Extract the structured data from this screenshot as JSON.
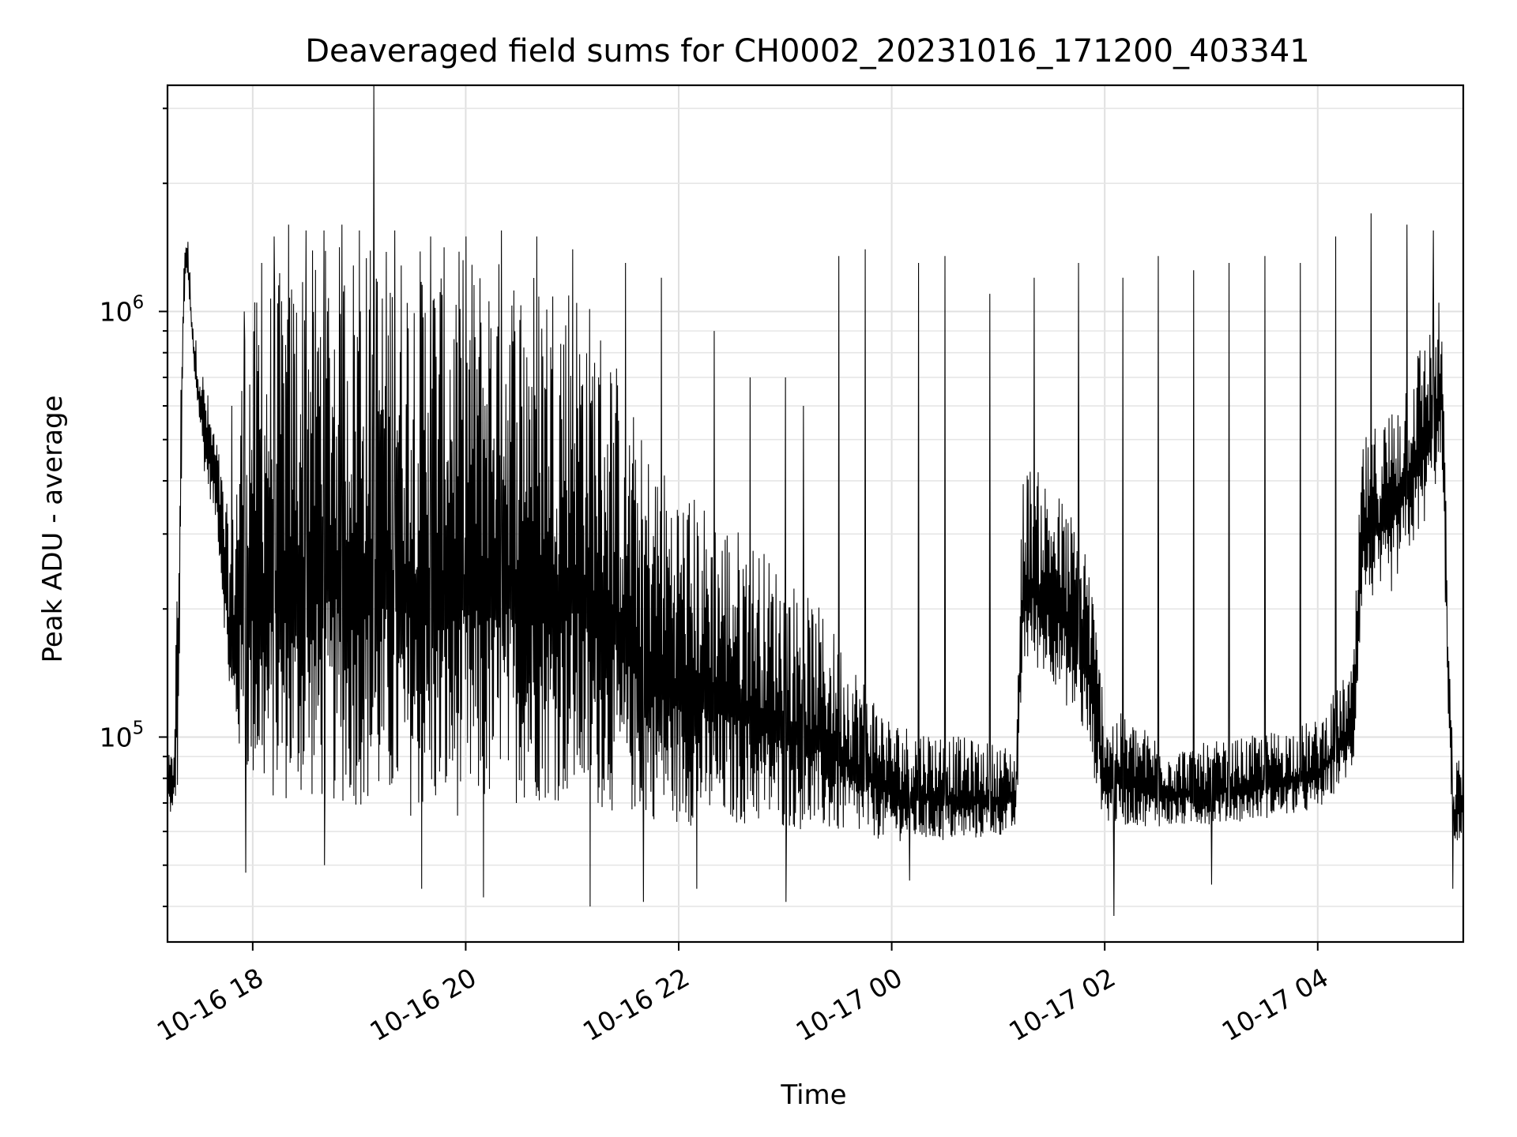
{
  "chart_data": {
    "type": "line",
    "title": "Deaveraged field sums for CH0002_20231016_171200_403341",
    "xlabel": "Time",
    "ylabel": "Peak ADU - average",
    "y_scale": "log",
    "ylim": [
      33000,
      3400000
    ],
    "xlim": [
      "2023-10-16 17:12",
      "2023-10-17 05:22"
    ],
    "grid": true,
    "x_ticks": [
      {
        "value": "2023-10-16 18:00",
        "label": "10-16 18"
      },
      {
        "value": "2023-10-16 20:00",
        "label": "10-16 20"
      },
      {
        "value": "2023-10-16 22:00",
        "label": "10-16 22"
      },
      {
        "value": "2023-10-17 00:00",
        "label": "10-17 00"
      },
      {
        "value": "2023-10-17 02:00",
        "label": "10-17 02"
      },
      {
        "value": "2023-10-17 04:00",
        "label": "10-17 04"
      }
    ],
    "y_ticks": [
      {
        "value": 100000,
        "base": "10",
        "exp": "5"
      },
      {
        "value": 1000000,
        "base": "10",
        "exp": "6"
      }
    ],
    "series": [
      {
        "color": "#000000",
        "envelope": [
          {
            "t": "2023-10-16 17:12",
            "lo": 70000,
            "hi": 90000
          },
          {
            "t": "2023-10-16 17:15",
            "lo": 60000,
            "hi": 93000
          },
          {
            "t": "2023-10-16 17:18",
            "lo": 70000,
            "hi": 300000
          },
          {
            "t": "2023-10-16 17:21",
            "lo": 900000,
            "hi": 1500000
          },
          {
            "t": "2023-10-16 17:23",
            "lo": 1200000,
            "hi": 1600000
          },
          {
            "t": "2023-10-16 17:27",
            "lo": 700000,
            "hi": 900000
          },
          {
            "t": "2023-10-16 17:33",
            "lo": 400000,
            "hi": 700000
          },
          {
            "t": "2023-10-16 17:40",
            "lo": 300000,
            "hi": 500000
          },
          {
            "t": "2023-10-16 17:48",
            "lo": 100000,
            "hi": 300000
          },
          {
            "t": "2023-10-16 17:55",
            "lo": 70000,
            "hi": 1000000
          },
          {
            "t": "2023-10-16 18:10",
            "lo": 60000,
            "hi": 1200000
          },
          {
            "t": "2023-10-16 18:30",
            "lo": 60000,
            "hi": 1400000
          },
          {
            "t": "2023-10-16 19:00",
            "lo": 58000,
            "hi": 1500000
          },
          {
            "t": "2023-10-16 19:30",
            "lo": 55000,
            "hi": 1450000
          },
          {
            "t": "2023-10-16 20:00",
            "lo": 55000,
            "hi": 1400000
          },
          {
            "t": "2023-10-16 20:30",
            "lo": 60000,
            "hi": 1350000
          },
          {
            "t": "2023-10-16 21:00",
            "lo": 60000,
            "hi": 1300000
          },
          {
            "t": "2023-10-16 21:20",
            "lo": 58000,
            "hi": 900000
          },
          {
            "t": "2023-10-16 21:40",
            "lo": 58000,
            "hi": 500000
          },
          {
            "t": "2023-10-16 22:00",
            "lo": 56000,
            "hi": 400000
          },
          {
            "t": "2023-10-16 22:40",
            "lo": 57000,
            "hi": 300000
          },
          {
            "t": "2023-10-16 23:20",
            "lo": 56000,
            "hi": 200000
          },
          {
            "t": "2023-10-17 00:00",
            "lo": 55000,
            "hi": 110000
          },
          {
            "t": "2023-10-17 00:40",
            "lo": 55000,
            "hi": 100000
          },
          {
            "t": "2023-10-17 01:10",
            "lo": 58000,
            "hi": 95000
          },
          {
            "t": "2023-10-17 01:14",
            "lo": 140000,
            "hi": 450000
          },
          {
            "t": "2023-10-17 01:30",
            "lo": 130000,
            "hi": 400000
          },
          {
            "t": "2023-10-17 01:50",
            "lo": 90000,
            "hi": 300000
          },
          {
            "t": "2023-10-17 02:00",
            "lo": 60000,
            "hi": 120000
          },
          {
            "t": "2023-10-17 02:40",
            "lo": 60000,
            "hi": 95000
          },
          {
            "t": "2023-10-17 03:20",
            "lo": 62000,
            "hi": 100000
          },
          {
            "t": "2023-10-17 04:00",
            "lo": 65000,
            "hi": 110000
          },
          {
            "t": "2023-10-17 04:20",
            "lo": 80000,
            "hi": 150000
          },
          {
            "t": "2023-10-17 04:25",
            "lo": 200000,
            "hi": 500000
          },
          {
            "t": "2023-10-17 04:40",
            "lo": 200000,
            "hi": 600000
          },
          {
            "t": "2023-10-17 05:00",
            "lo": 300000,
            "hi": 900000
          },
          {
            "t": "2023-10-17 05:10",
            "lo": 400000,
            "hi": 1100000
          },
          {
            "t": "2023-10-17 05:14",
            "lo": 90000,
            "hi": 150000
          },
          {
            "t": "2023-10-17 05:17",
            "lo": 50000,
            "hi": 90000
          },
          {
            "t": "2023-10-17 05:22",
            "lo": 60000,
            "hi": 90000
          }
        ],
        "spikes": [
          {
            "t": "2023-10-16 17:48",
            "v": 600000
          },
          {
            "t": "2023-10-16 17:55",
            "v": 1000000
          },
          {
            "t": "2023-10-16 18:05",
            "v": 1300000
          },
          {
            "t": "2023-10-16 18:12",
            "v": 1500000
          },
          {
            "t": "2023-10-16 18:20",
            "v": 1600000
          },
          {
            "t": "2023-10-16 18:30",
            "v": 1550000
          },
          {
            "t": "2023-10-16 18:40",
            "v": 1550000
          },
          {
            "t": "2023-10-16 18:50",
            "v": 1600000
          },
          {
            "t": "2023-10-16 19:00",
            "v": 1550000
          },
          {
            "t": "2023-10-16 19:08",
            "v": 3400000
          },
          {
            "t": "2023-10-16 19:20",
            "v": 1550000
          },
          {
            "t": "2023-10-16 19:40",
            "v": 1500000
          },
          {
            "t": "2023-10-16 20:00",
            "v": 1500000
          },
          {
            "t": "2023-10-16 20:20",
            "v": 1550000
          },
          {
            "t": "2023-10-16 20:40",
            "v": 1500000
          },
          {
            "t": "2023-10-16 21:00",
            "v": 1400000
          },
          {
            "t": "2023-10-16 21:30",
            "v": 1300000
          },
          {
            "t": "2023-10-16 21:50",
            "v": 1200000
          },
          {
            "t": "2023-10-16 22:20",
            "v": 900000
          },
          {
            "t": "2023-10-16 22:40",
            "v": 700000
          },
          {
            "t": "2023-10-16 23:00",
            "v": 700000
          },
          {
            "t": "2023-10-16 23:10",
            "v": 600000
          },
          {
            "t": "2023-10-16 23:30",
            "v": 1350000
          },
          {
            "t": "2023-10-16 23:45",
            "v": 1400000
          },
          {
            "t": "2023-10-17 00:15",
            "v": 1300000
          },
          {
            "t": "2023-10-17 00:30",
            "v": 1350000
          },
          {
            "t": "2023-10-17 00:55",
            "v": 1100000
          },
          {
            "t": "2023-10-17 01:20",
            "v": 1200000
          },
          {
            "t": "2023-10-17 01:45",
            "v": 1300000
          },
          {
            "t": "2023-10-17 02:10",
            "v": 1200000
          },
          {
            "t": "2023-10-17 02:30",
            "v": 1350000
          },
          {
            "t": "2023-10-17 02:50",
            "v": 1250000
          },
          {
            "t": "2023-10-17 03:10",
            "v": 1300000
          },
          {
            "t": "2023-10-17 03:30",
            "v": 1350000
          },
          {
            "t": "2023-10-17 03:50",
            "v": 1300000
          },
          {
            "t": "2023-10-17 04:10",
            "v": 1500000
          },
          {
            "t": "2023-10-17 04:30",
            "v": 1700000
          },
          {
            "t": "2023-10-17 04:50",
            "v": 1600000
          },
          {
            "t": "2023-10-17 05:05",
            "v": 1550000
          }
        ],
        "dips": [
          {
            "t": "2023-10-16 17:56",
            "v": 48000
          },
          {
            "t": "2023-10-16 18:40",
            "v": 50000
          },
          {
            "t": "2023-10-16 19:35",
            "v": 44000
          },
          {
            "t": "2023-10-16 20:10",
            "v": 42000
          },
          {
            "t": "2023-10-16 21:10",
            "v": 40000
          },
          {
            "t": "2023-10-16 21:40",
            "v": 41000
          },
          {
            "t": "2023-10-16 22:10",
            "v": 44000
          },
          {
            "t": "2023-10-16 23:00",
            "v": 41000
          },
          {
            "t": "2023-10-17 00:10",
            "v": 46000
          },
          {
            "t": "2023-10-17 02:05",
            "v": 38000
          },
          {
            "t": "2023-10-17 03:00",
            "v": 45000
          },
          {
            "t": "2023-10-17 05:16",
            "v": 44000
          }
        ]
      }
    ]
  }
}
